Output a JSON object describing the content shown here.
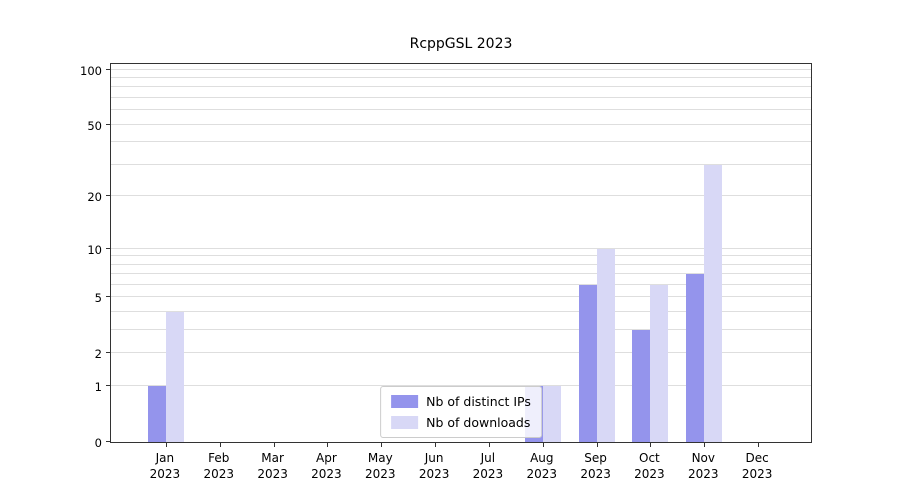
{
  "chart_data": {
    "type": "bar",
    "title": "RcppGSL 2023",
    "categories": [
      "Jan 2023",
      "Feb 2023",
      "Mar 2023",
      "Apr 2023",
      "May 2023",
      "Jun 2023",
      "Jul 2023",
      "Aug 2023",
      "Sep 2023",
      "Oct 2023",
      "Nov 2023",
      "Dec 2023"
    ],
    "series": [
      {
        "name": "Nb of distinct IPs",
        "color": "#9494ec",
        "values": [
          1,
          0,
          0,
          0,
          0,
          0,
          0,
          1,
          6,
          3,
          7,
          0
        ]
      },
      {
        "name": "Nb of downloads",
        "color": "#d8d8f6",
        "values": [
          4,
          0,
          0,
          0,
          0,
          0,
          0,
          1,
          10,
          6,
          30,
          0
        ]
      }
    ],
    "y_ticks": [
      0,
      1,
      2,
      5,
      10,
      20,
      50,
      100
    ],
    "minor_gridlines": [
      1,
      2,
      3,
      4,
      5,
      6,
      7,
      8,
      9,
      10,
      20,
      30,
      40,
      50,
      60,
      70,
      80,
      90,
      100
    ],
    "scale": "log1p",
    "ylim": [
      0,
      110
    ],
    "grid": true,
    "legend_position": "lower center",
    "axis_color": "#333333",
    "gridline_color": "#dedede",
    "background": "#ffffff"
  }
}
